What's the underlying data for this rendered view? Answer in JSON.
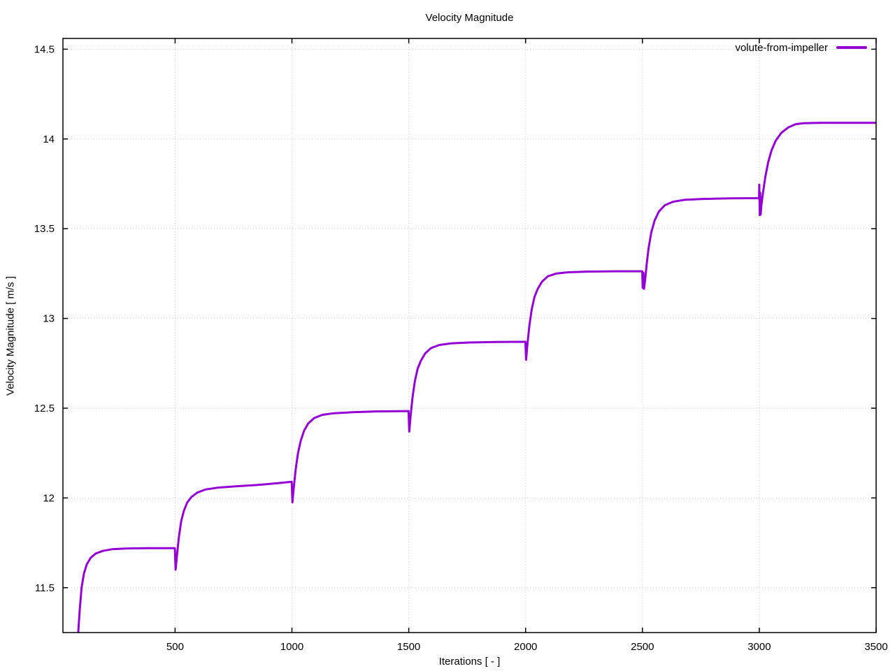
{
  "chart_data": {
    "type": "line",
    "title": "Velocity Magnitude",
    "xlabel": "Iterations [ - ]",
    "ylabel": "Velocity Magnitude [ m/s ]",
    "xlim": [
      20,
      3500
    ],
    "ylim": [
      11.25,
      14.56
    ],
    "xticks": [
      500,
      1000,
      1500,
      2000,
      2500,
      3000,
      3500
    ],
    "xtick_labels": [
      "500",
      "1000",
      "1500",
      "2000",
      "2500",
      "3000",
      "3500"
    ],
    "yticks": [
      11.5,
      12,
      12.5,
      13,
      13.5,
      14,
      14.5
    ],
    "ytick_labels": [
      "11.5",
      "12",
      "12.5",
      "13",
      "13.5",
      "14",
      "14.5"
    ],
    "grid": "dotted",
    "grid_color": "#c8c8c8",
    "border_color": "#000000",
    "legend_position": "top-right-inside",
    "series": [
      {
        "name": "volute-from-impeller",
        "color": "#9400d3",
        "line_width": 3,
        "points": [
          [
            85,
            11.24
          ],
          [
            92,
            11.38
          ],
          [
            100,
            11.5
          ],
          [
            110,
            11.58
          ],
          [
            122,
            11.63
          ],
          [
            138,
            11.665
          ],
          [
            160,
            11.69
          ],
          [
            190,
            11.705
          ],
          [
            230,
            11.714
          ],
          [
            290,
            11.718
          ],
          [
            380,
            11.72
          ],
          [
            499,
            11.72
          ],
          [
            502,
            11.6
          ],
          [
            508,
            11.68
          ],
          [
            516,
            11.78
          ],
          [
            526,
            11.87
          ],
          [
            538,
            11.93
          ],
          [
            552,
            11.975
          ],
          [
            570,
            12.005
          ],
          [
            595,
            12.03
          ],
          [
            630,
            12.047
          ],
          [
            680,
            12.057
          ],
          [
            760,
            12.065
          ],
          [
            850,
            12.072
          ],
          [
            940,
            12.082
          ],
          [
            999,
            12.09
          ],
          [
            1002,
            11.975
          ],
          [
            1008,
            12.06
          ],
          [
            1016,
            12.16
          ],
          [
            1026,
            12.25
          ],
          [
            1038,
            12.32
          ],
          [
            1052,
            12.375
          ],
          [
            1070,
            12.415
          ],
          [
            1095,
            12.445
          ],
          [
            1130,
            12.463
          ],
          [
            1180,
            12.472
          ],
          [
            1260,
            12.478
          ],
          [
            1360,
            12.482
          ],
          [
            1499,
            12.484
          ],
          [
            1502,
            12.37
          ],
          [
            1508,
            12.46
          ],
          [
            1516,
            12.56
          ],
          [
            1526,
            12.65
          ],
          [
            1538,
            12.72
          ],
          [
            1552,
            12.765
          ],
          [
            1570,
            12.805
          ],
          [
            1595,
            12.835
          ],
          [
            1630,
            12.852
          ],
          [
            1680,
            12.861
          ],
          [
            1760,
            12.866
          ],
          [
            1880,
            12.869
          ],
          [
            1999,
            12.87
          ],
          [
            2002,
            12.77
          ],
          [
            2008,
            12.86
          ],
          [
            2016,
            12.96
          ],
          [
            2026,
            13.05
          ],
          [
            2038,
            13.12
          ],
          [
            2052,
            13.165
          ],
          [
            2070,
            13.205
          ],
          [
            2095,
            13.235
          ],
          [
            2130,
            13.25
          ],
          [
            2180,
            13.257
          ],
          [
            2260,
            13.261
          ],
          [
            2380,
            13.263
          ],
          [
            2499,
            13.263
          ],
          [
            2501,
            13.17
          ],
          [
            2504,
            13.255
          ],
          [
            2507,
            13.165
          ],
          [
            2511,
            13.21
          ],
          [
            2518,
            13.3
          ],
          [
            2526,
            13.39
          ],
          [
            2538,
            13.48
          ],
          [
            2552,
            13.545
          ],
          [
            2570,
            13.595
          ],
          [
            2595,
            13.63
          ],
          [
            2630,
            13.65
          ],
          [
            2680,
            13.661
          ],
          [
            2760,
            13.666
          ],
          [
            2880,
            13.669
          ],
          [
            2999,
            13.67
          ],
          [
            3000,
            13.745
          ],
          [
            3002,
            13.575
          ],
          [
            3004,
            13.7
          ],
          [
            3006,
            13.58
          ],
          [
            3009,
            13.63
          ],
          [
            3016,
            13.7
          ],
          [
            3026,
            13.79
          ],
          [
            3038,
            13.87
          ],
          [
            3052,
            13.935
          ],
          [
            3070,
            13.99
          ],
          [
            3095,
            14.035
          ],
          [
            3125,
            14.065
          ],
          [
            3155,
            14.082
          ],
          [
            3190,
            14.088
          ],
          [
            3260,
            14.09
          ],
          [
            3380,
            14.09
          ],
          [
            3500,
            14.09
          ]
        ]
      }
    ]
  },
  "legend": {
    "label": "volute-from-impeller"
  }
}
